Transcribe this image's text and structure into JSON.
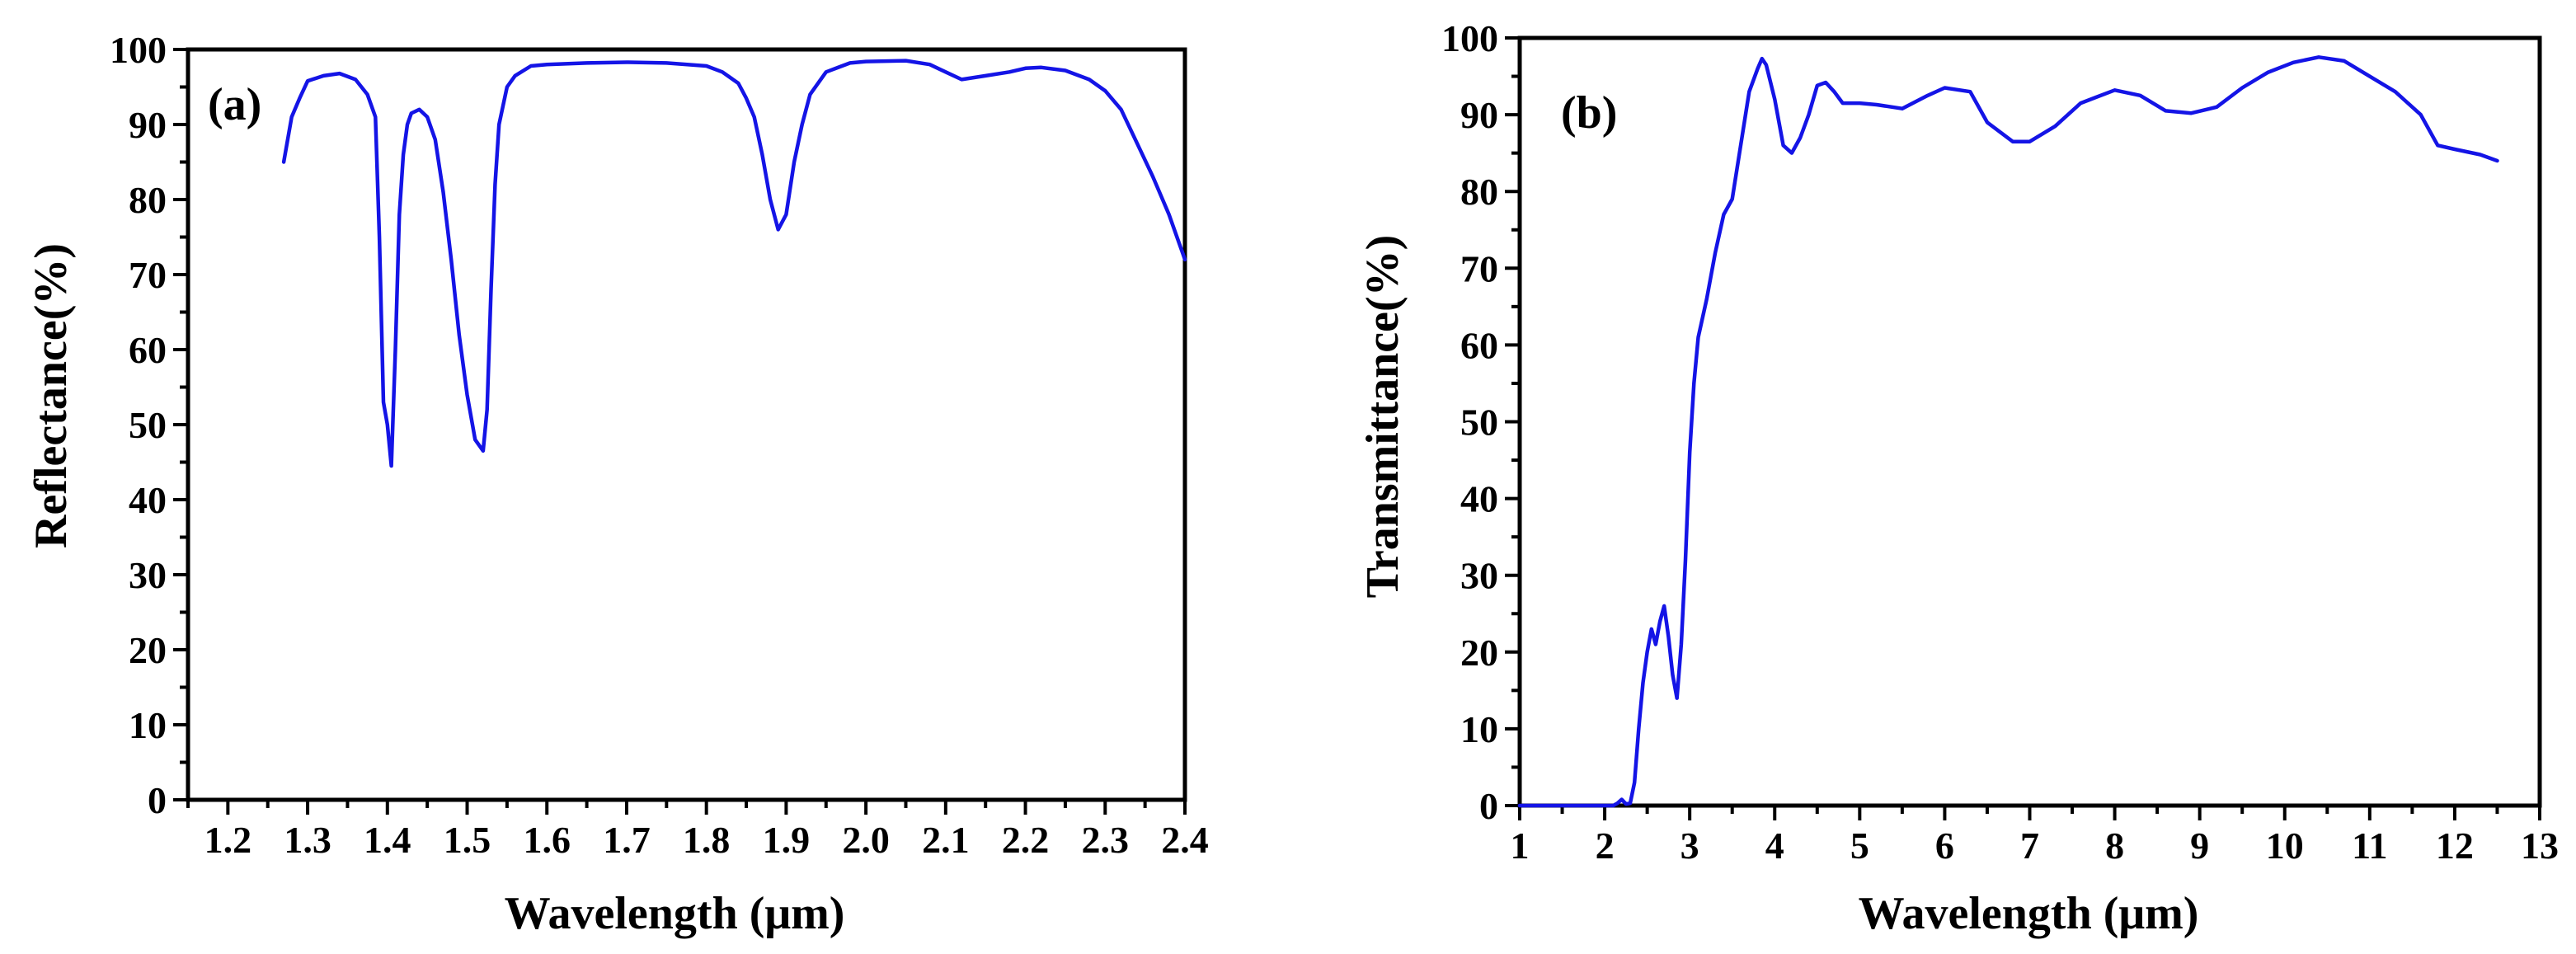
{
  "chart_data": [
    {
      "type": "line",
      "panel_label": "(a)",
      "xlabel": "Wavelength (μm)",
      "ylabel": "Reflectance(%)",
      "xlim": [
        1.15,
        2.4
      ],
      "ylim": [
        0,
        100
      ],
      "xticks": [
        1.2,
        1.3,
        1.4,
        1.5,
        1.6,
        1.7,
        1.8,
        1.9,
        2.0,
        2.1,
        2.2,
        2.3,
        2.4
      ],
      "xtick_labels": [
        "1.2",
        "1.3",
        "1.4",
        "1.5",
        "1.6",
        "1.7",
        "1.8",
        "1.9",
        "2.0",
        "2.1",
        "2.2",
        "2.3",
        "2.4"
      ],
      "yticks": [
        0,
        10,
        20,
        30,
        40,
        50,
        60,
        70,
        80,
        90,
        100
      ],
      "ytick_labels": [
        "0",
        "10",
        "20",
        "30",
        "40",
        "50",
        "60",
        "70",
        "80",
        "90",
        "100"
      ],
      "color": "#1414e6",
      "series": [
        {
          "x": [
            1.27,
            1.28,
            1.29,
            1.3,
            1.32,
            1.34,
            1.36,
            1.375,
            1.385,
            1.39,
            1.395,
            1.4,
            1.405,
            1.41,
            1.415,
            1.42,
            1.425,
            1.43,
            1.44,
            1.45,
            1.46,
            1.47,
            1.48,
            1.49,
            1.5,
            1.51,
            1.52,
            1.525,
            1.53,
            1.535,
            1.54,
            1.55,
            1.56,
            1.58,
            1.6,
            1.65,
            1.7,
            1.75,
            1.8,
            1.82,
            1.84,
            1.85,
            1.86,
            1.87,
            1.88,
            1.89,
            1.9,
            1.91,
            1.92,
            1.93,
            1.95,
            1.98,
            2.0,
            2.05,
            2.08,
            2.1,
            2.12,
            2.15,
            2.18,
            2.2,
            2.22,
            2.25,
            2.28,
            2.3,
            2.32,
            2.34,
            2.36,
            2.38,
            2.4
          ],
          "y": [
            85,
            91,
            93.5,
            95.8,
            96.5,
            96.8,
            96,
            94,
            91,
            75,
            53,
            50,
            44.5,
            60,
            78,
            86,
            90,
            91.5,
            92,
            91,
            88,
            81,
            72,
            62,
            54,
            48,
            46.5,
            52,
            68,
            82,
            90,
            95,
            96.5,
            97.8,
            98,
            98.2,
            98.3,
            98.2,
            97.8,
            97,
            95.5,
            93.5,
            91,
            86,
            80,
            76,
            78,
            85,
            90,
            94,
            97,
            98.2,
            98.4,
            98.5,
            98,
            97,
            96,
            96.5,
            97,
            97.5,
            97.6,
            97.2,
            96,
            94.5,
            92,
            87.5,
            83,
            78,
            72
          ]
        }
      ]
    },
    {
      "type": "line",
      "panel_label": "(b)",
      "xlabel": "Wavelength (μm)",
      "ylabel": "Transmittance(%)",
      "xlim": [
        1,
        13
      ],
      "ylim": [
        0,
        100
      ],
      "xticks": [
        1,
        2,
        3,
        4,
        5,
        6,
        7,
        8,
        9,
        10,
        11,
        12,
        13
      ],
      "xtick_labels": [
        "1",
        "2",
        "3",
        "4",
        "5",
        "6",
        "7",
        "8",
        "9",
        "10",
        "11",
        "12",
        "13"
      ],
      "yticks": [
        0,
        10,
        20,
        30,
        40,
        50,
        60,
        70,
        80,
        90,
        100
      ],
      "ytick_labels": [
        "0",
        "10",
        "20",
        "30",
        "40",
        "50",
        "60",
        "70",
        "80",
        "90",
        "100"
      ],
      "color": "#1414e6",
      "series": [
        {
          "x": [
            1.0,
            1.5,
            2.0,
            2.1,
            2.15,
            2.2,
            2.25,
            2.3,
            2.35,
            2.4,
            2.45,
            2.5,
            2.55,
            2.6,
            2.65,
            2.7,
            2.75,
            2.8,
            2.85,
            2.9,
            2.95,
            3.0,
            3.05,
            3.1,
            3.2,
            3.3,
            3.4,
            3.5,
            3.6,
            3.7,
            3.8,
            3.85,
            3.9,
            4.0,
            4.1,
            4.2,
            4.3,
            4.4,
            4.5,
            4.6,
            4.7,
            4.8,
            5.0,
            5.2,
            5.5,
            5.8,
            6.0,
            6.3,
            6.5,
            6.8,
            7.0,
            7.3,
            7.6,
            8.0,
            8.3,
            8.6,
            8.9,
            9.2,
            9.5,
            9.8,
            10.1,
            10.4,
            10.7,
            11.0,
            11.3,
            11.6,
            11.8,
            12.0,
            12.3,
            12.5
          ],
          "y": [
            0,
            0,
            0,
            0,
            0.3,
            0.8,
            0.2,
            0.3,
            3,
            10,
            16,
            20,
            23,
            21,
            24,
            26,
            22,
            17,
            14,
            21,
            32,
            46,
            55,
            61,
            66,
            72,
            77,
            79,
            86,
            93,
            96,
            97.3,
            96.5,
            92,
            86,
            85,
            87,
            90,
            93.8,
            94.2,
            93,
            91.5,
            91.5,
            91.3,
            90.8,
            92.5,
            93.5,
            93,
            89,
            86.5,
            86.5,
            88.5,
            91.5,
            93.2,
            92.5,
            90.5,
            90.2,
            91,
            93.5,
            95.5,
            96.8,
            97.5,
            97,
            95,
            93,
            90,
            86,
            85.5,
            84.8,
            84
          ]
        }
      ]
    }
  ]
}
